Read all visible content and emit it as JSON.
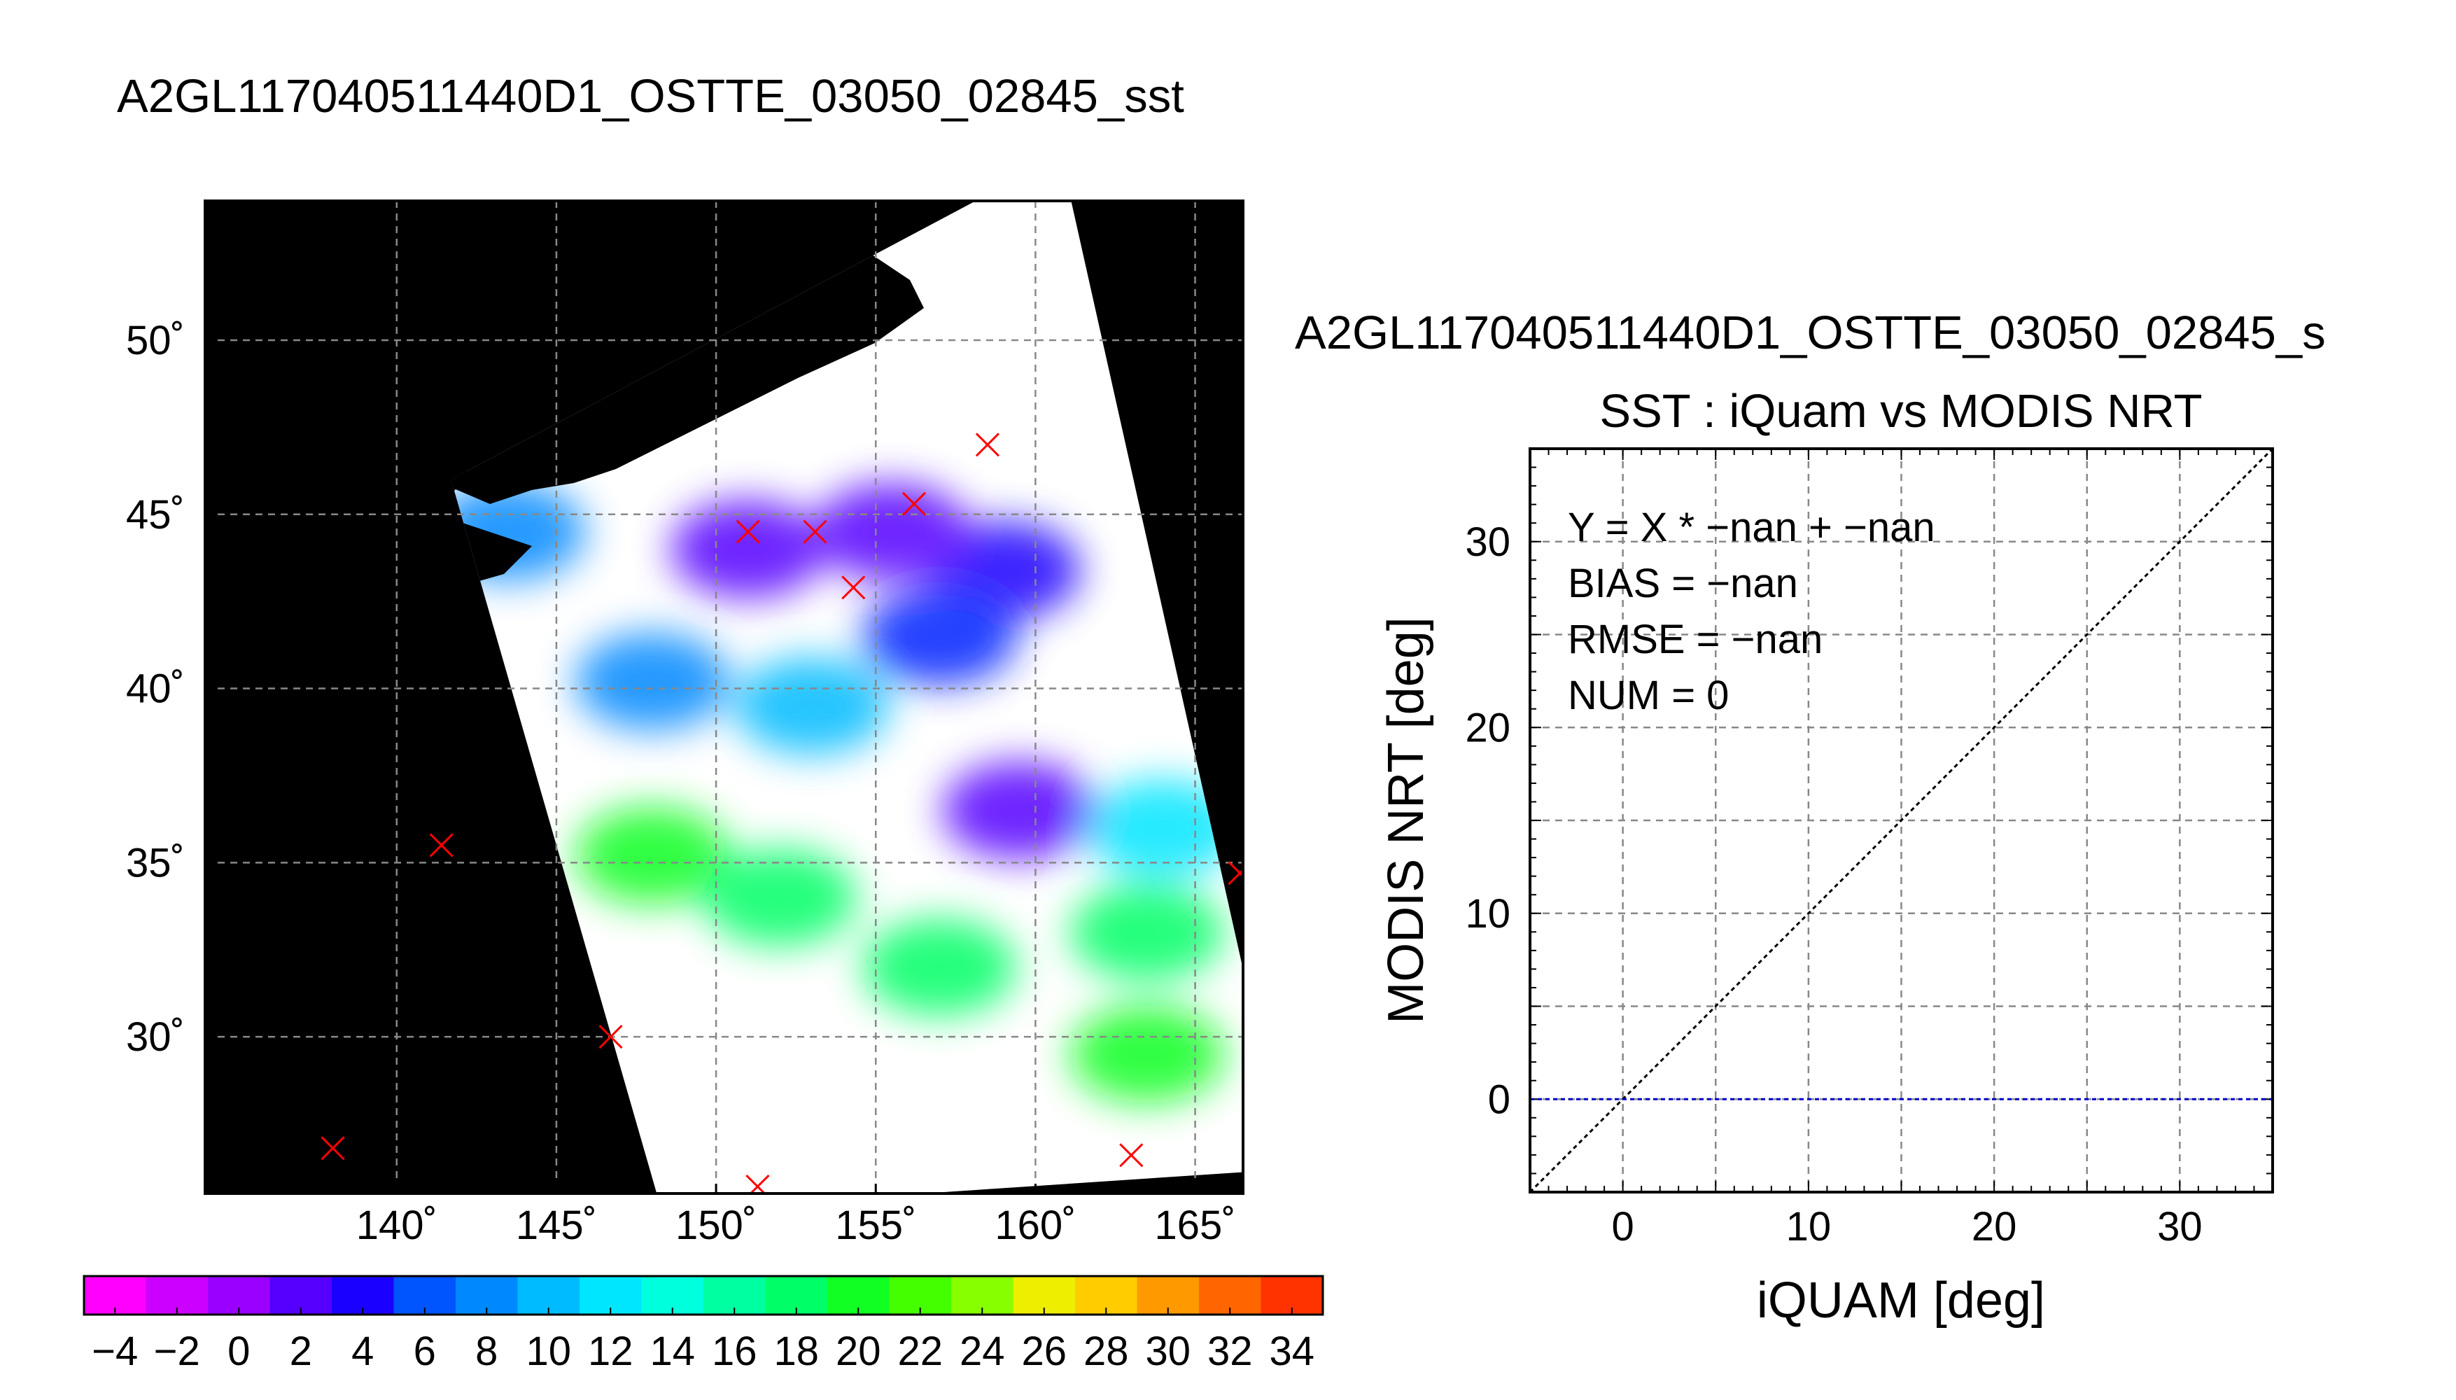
{
  "figure": {
    "map_title": "A2GL117040511440D1_OSTTE_03050_02845_sst",
    "scatter_title": "A2GL117040511440D1_OSTTE_03050_02845_s",
    "scatter_subtitle": "SST : iQuam vs MODIS NRT"
  },
  "colors": {
    "land": "#000000",
    "swath": "#ffffff",
    "marker": "#ff0000",
    "identity_line": "#000000",
    "zero_line": "#0000cc",
    "grid": "#888888"
  },
  "chart_data": [
    {
      "type": "map",
      "title": "A2GL117040511440D1_OSTTE_03050_02845_sst",
      "xlim": [
        134,
        166.5
      ],
      "ylim": [
        25.5,
        54
      ],
      "x_ticks": [
        140,
        145,
        150,
        155,
        160,
        165
      ],
      "y_ticks": [
        30,
        35,
        40,
        45,
        50
      ],
      "x_tick_labels": [
        "140˚",
        "145˚",
        "150˚",
        "155˚",
        "160˚",
        "165˚"
      ],
      "y_tick_labels": [
        "30˚",
        "35˚",
        "40˚",
        "45˚",
        "50˚"
      ],
      "grid": true,
      "swath_corners": [
        {
          "lon": 141.7,
          "lat": 46.0
        },
        {
          "lon": 160.8,
          "lat": 55.3
        },
        {
          "lon": 167.9,
          "lat": 26.2
        },
        {
          "lon": 148.3,
          "lat": 25.0
        }
      ],
      "sst_regions": [
        {
          "lon": 159.0,
          "lat": 43.4,
          "sst": 3
        },
        {
          "lon": 157.0,
          "lat": 41.5,
          "sst": 5
        },
        {
          "lon": 155.5,
          "lat": 44.5,
          "sst": 2
        },
        {
          "lon": 151.0,
          "lat": 44.0,
          "sst": 1
        },
        {
          "lon": 148.0,
          "lat": 40.2,
          "sst": 9
        },
        {
          "lon": 153.0,
          "lat": 39.5,
          "sst": 10
        },
        {
          "lon": 164.0,
          "lat": 36.0,
          "sst": 13
        },
        {
          "lon": 148.0,
          "lat": 35.2,
          "sst": 19
        },
        {
          "lon": 152.0,
          "lat": 34.0,
          "sst": 17
        },
        {
          "lon": 157.0,
          "lat": 32.0,
          "sst": 18
        },
        {
          "lon": 163.5,
          "lat": 29.5,
          "sst": 19
        },
        {
          "lon": 163.5,
          "lat": 33.0,
          "sst": 18
        },
        {
          "lon": 143.5,
          "lat": 44.5,
          "sst": 8
        },
        {
          "lon": 159.5,
          "lat": 36.5,
          "sst": 1
        }
      ],
      "markers": [
        {
          "lon": 151.0,
          "lat": 44.5
        },
        {
          "lon": 153.1,
          "lat": 44.5
        },
        {
          "lon": 154.3,
          "lat": 42.9
        },
        {
          "lon": 156.2,
          "lat": 45.3
        },
        {
          "lon": 158.5,
          "lat": 47.0
        },
        {
          "lon": 141.4,
          "lat": 35.5
        },
        {
          "lon": 166.4,
          "lat": 34.7
        },
        {
          "lon": 146.7,
          "lat": 30.0
        },
        {
          "lon": 138.0,
          "lat": 26.8
        },
        {
          "lon": 151.3,
          "lat": 25.7
        },
        {
          "lon": 163.0,
          "lat": 26.6
        }
      ]
    },
    {
      "type": "colorbar",
      "min": -5,
      "max": 35,
      "step": 2,
      "tick_labels": [
        "−4",
        "−2",
        "0",
        "2",
        "4",
        "6",
        "8",
        "10",
        "12",
        "14",
        "16",
        "18",
        "20",
        "22",
        "24",
        "26",
        "28",
        "30",
        "32",
        "34"
      ],
      "tick_values": [
        -4,
        -2,
        0,
        2,
        4,
        6,
        8,
        10,
        12,
        14,
        16,
        18,
        20,
        22,
        24,
        26,
        28,
        30,
        32,
        34
      ]
    },
    {
      "type": "scatter",
      "title": "SST : iQuam vs MODIS NRT",
      "xlabel": "iQUAM [deg]",
      "ylabel": "MODIS NRT [deg]",
      "xlim": [
        -5,
        35
      ],
      "ylim": [
        -5,
        35
      ],
      "x_ticks": [
        0,
        10,
        20,
        30
      ],
      "y_ticks": [
        0,
        10,
        20,
        30
      ],
      "x_tick_labels": [
        "0",
        "10",
        "20",
        "30"
      ],
      "y_tick_labels": [
        "0",
        "10",
        "20",
        "30"
      ],
      "grid": true,
      "points": [],
      "lines": [
        {
          "kind": "identity",
          "x": [
            -5,
            35
          ],
          "y": [
            -5,
            35
          ]
        },
        {
          "kind": "fit",
          "x": [
            -5,
            35
          ],
          "y": [
            0,
            0
          ]
        }
      ],
      "annotations": [
        "Y = X * −nan + −nan",
        "BIAS = −nan",
        "RMSE = −nan",
        "NUM = 0"
      ]
    }
  ]
}
